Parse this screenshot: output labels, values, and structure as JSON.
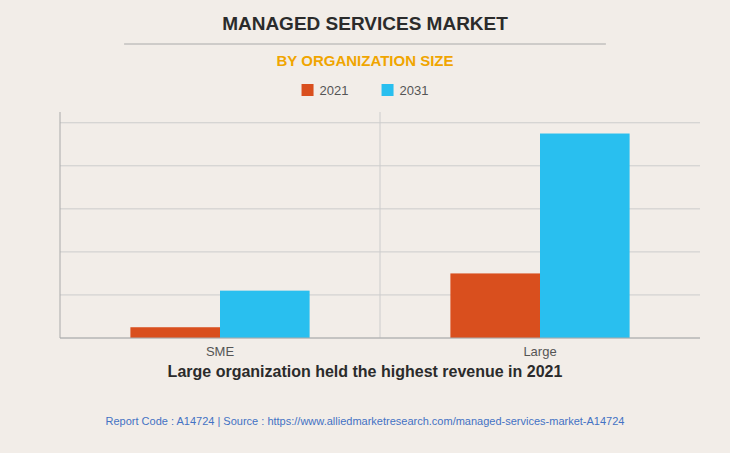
{
  "chart_data": {
    "type": "bar",
    "title": "MANAGED SERVICES MARKET",
    "subtitle": "BY ORGANIZATION SIZE",
    "categories": [
      "SME",
      "Large"
    ],
    "series": [
      {
        "name": "2021",
        "color": "#d94f1e",
        "values": [
          0.5,
          3.0
        ]
      },
      {
        "name": "2031",
        "color": "#29bfef",
        "values": [
          2.2,
          9.5
        ]
      }
    ],
    "ylim": [
      0,
      10.5
    ],
    "yticks": [
      0,
      2,
      4,
      6,
      8,
      10
    ],
    "grid": true,
    "legend": "top",
    "tick_labels": "x",
    "annotations": [
      "Large organization held the highest revenue in 2021",
      "Report Code : A14724  |  Source : https://www.alliedmarketresearch.com/managed-services-market-A14724"
    ]
  }
}
